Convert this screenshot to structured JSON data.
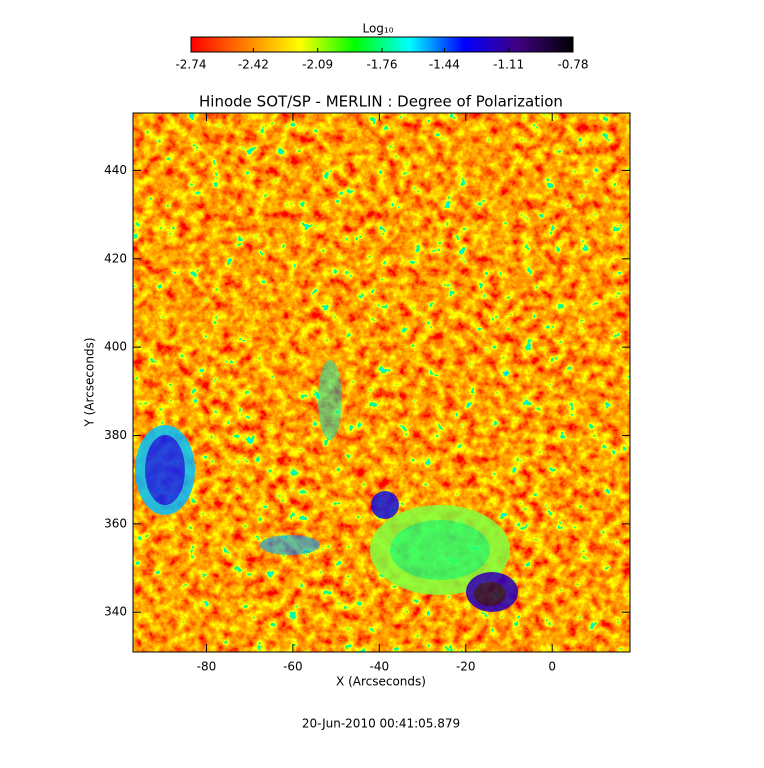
{
  "chart_data": {
    "type": "heatmap",
    "title": "Hinode SOT/SP - MERLIN : Degree of Polarization",
    "xlabel": "X (Arcseconds)",
    "ylabel": "Y (Arcseconds)",
    "xlim": [
      -97,
      18
    ],
    "ylim": [
      331,
      453
    ],
    "xticks": [
      -80,
      -60,
      -40,
      -20,
      0
    ],
    "yticks": [
      340,
      360,
      380,
      400,
      420,
      440
    ],
    "colorbar": {
      "label": "Log₁₀",
      "clim": [
        -2.74,
        -0.78
      ],
      "ticks": [
        -2.74,
        -2.42,
        -2.09,
        -1.76,
        -1.44,
        -1.11,
        -0.78
      ],
      "colormap": [
        "#ff0000",
        "#ff8000",
        "#ffff00",
        "#00ff00",
        "#00ffff",
        "#0000ff",
        "#400080",
        "#000000"
      ]
    },
    "footer": "20-Jun-2010 00:41:05.879"
  }
}
